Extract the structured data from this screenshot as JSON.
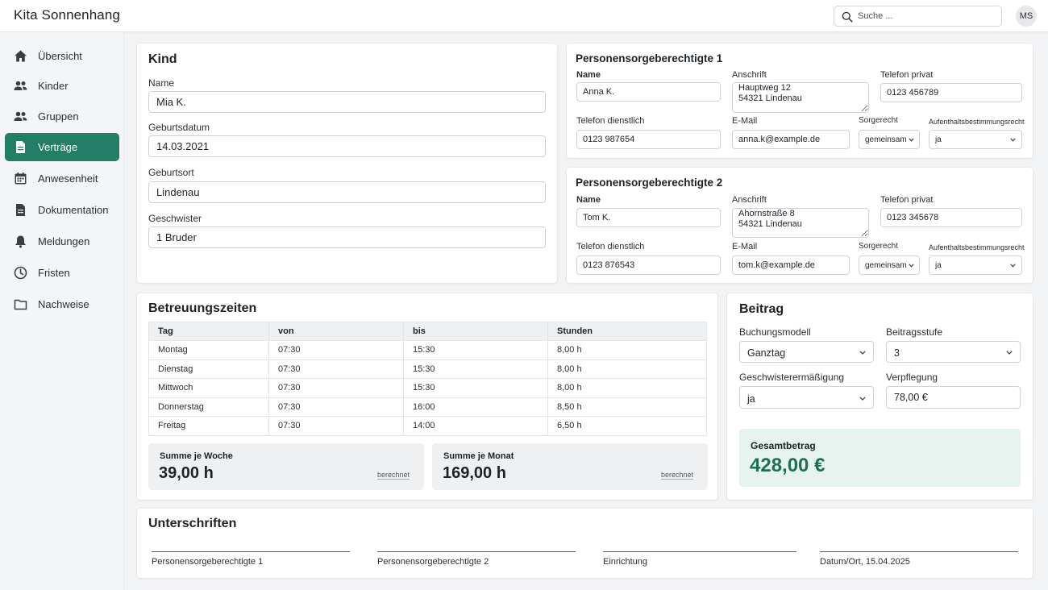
{
  "app": {
    "title": "Kita Sonnenhang"
  },
  "search": {
    "placeholder": "Suche ..."
  },
  "user": {
    "initials": "MS"
  },
  "sidebar": {
    "items": [
      {
        "label": "Übersicht",
        "icon": "home-icon"
      },
      {
        "label": "Kinder",
        "icon": "users-icon"
      },
      {
        "label": "Gruppen",
        "icon": "groups-icon"
      },
      {
        "label": "Verträge",
        "icon": "document-icon",
        "active": true
      },
      {
        "label": "Anwesenheit",
        "icon": "calendar-icon"
      },
      {
        "label": "Dokumentation",
        "icon": "file-icon"
      },
      {
        "label": "Meldungen",
        "icon": "bell-icon"
      },
      {
        "label": "Fristen",
        "icon": "clock-icon"
      },
      {
        "label": "Nachweise",
        "icon": "folder-icon"
      }
    ]
  },
  "kind": {
    "title": "Kind",
    "name_label": "Name",
    "name": "Mia K.",
    "geburtsdatum_label": "Geburtsdatum",
    "geburtsdatum": "14.03.2021",
    "geburtsort_label": "Geburtsort",
    "geburtsort": "Lindenau",
    "geschwister_label": "Geschwister",
    "geschwister": "1 Bruder"
  },
  "guardians": [
    {
      "title": "Personensorgeberechtigte 1",
      "name_label": "Name",
      "name": "Anna K.",
      "anschrift_label": "Anschrift",
      "anschrift": "Hauptweg 12\n54321 Lindenau",
      "tel_privat_label": "Telefon privat",
      "tel_privat": "0123 456789",
      "tel_dienst_label": "Telefon dienstlich",
      "tel_dienst": "0123 987654",
      "email_label": "E-Mail",
      "email": "anna.k@example.de",
      "sorgerecht_label": "Sorgerecht",
      "sorgerecht": "gemeinsam",
      "aufenthalt_label": "Aufenthaltsbestimmungsrecht",
      "aufenthalt": "ja"
    },
    {
      "title": "Personensorgeberechtigte 2",
      "name_label": "Name",
      "name": "Tom K.",
      "anschrift_label": "Anschrift",
      "anschrift": "Ahornstraße 8\n54321 Lindenau",
      "tel_privat_label": "Telefon privat",
      "tel_privat": "0123 345678",
      "tel_dienst_label": "Telefon dienstlich",
      "tel_dienst": "0123 876543",
      "email_label": "E-Mail",
      "email": "tom.k@example.de",
      "sorgerecht_label": "Sorgerecht",
      "sorgerecht": "gemeinsam",
      "aufenthalt_label": "Aufenthaltsbestimmungsrecht",
      "aufenthalt": "ja"
    }
  ],
  "betreuung": {
    "title": "Betreuungszeiten",
    "columns": [
      "Tag",
      "von",
      "bis",
      "Stunden"
    ],
    "rows": [
      [
        "Montag",
        "07:30",
        "15:30",
        "8,00 h"
      ],
      [
        "Dienstag",
        "07:30",
        "15:30",
        "8,00 h"
      ],
      [
        "Mittwoch",
        "07:30",
        "15:30",
        "8,00 h"
      ],
      [
        "Donnerstag",
        "07:30",
        "16:00",
        "8,50 h"
      ],
      [
        "Freitag",
        "07:30",
        "14:00",
        "6,50 h"
      ]
    ],
    "sum_week_label": "Summe je Woche",
    "sum_week": "39,00 h",
    "sum_month_label": "Summe je Monat",
    "sum_month": "169,00 h",
    "calc_note": "berechnet"
  },
  "beitrag": {
    "title": "Beitrag",
    "buchung_label": "Buchungsmodell",
    "buchung": "Ganztag",
    "stufe_label": "Beitragsstufe",
    "stufe": "3",
    "geschw_label": "Geschwisterermäßigung",
    "geschw": "ja",
    "verpflegung_label": "Verpflegung",
    "verpflegung": "78,00 €",
    "total_label": "Gesamtbetrag",
    "total": "428,00 €"
  },
  "unterschriften": {
    "title": "Unterschriften",
    "labels": [
      "Personensorgeberechtigte 1",
      "Personensorgeberechtigte 2",
      "Einrichtung",
      "Datum/Ort, 15.04.2025"
    ]
  },
  "colors": {
    "accent": "#237e66",
    "total_bg": "#e6f3ee",
    "total_text": "#1f6e58"
  }
}
